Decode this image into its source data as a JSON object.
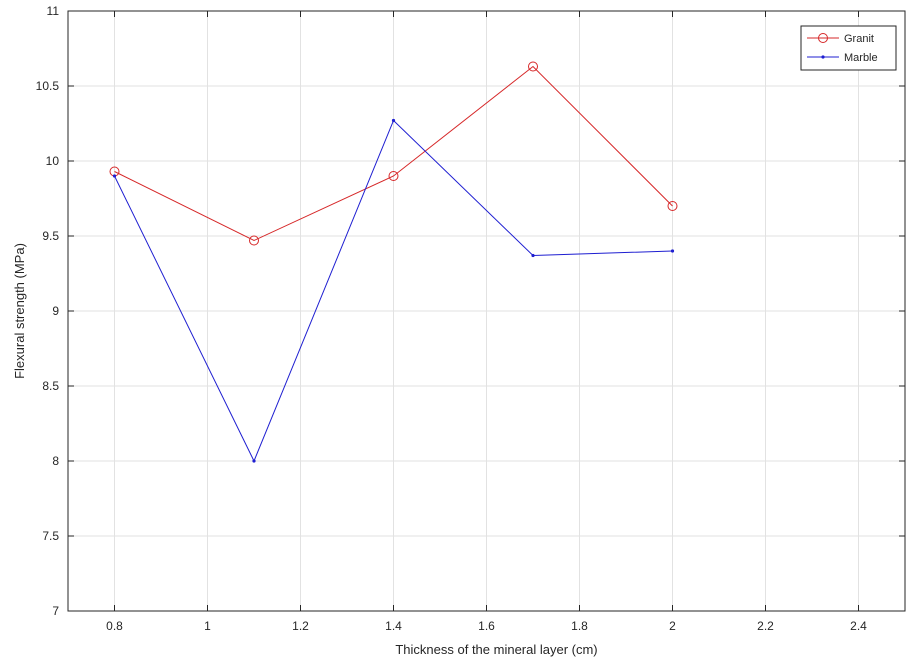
{
  "chart_data": {
    "type": "line",
    "title": "",
    "xlabel": "Thickness of the mineral layer (cm)",
    "ylabel": "Flexural strength (MPa)",
    "xlim": [
      0.7,
      2.5
    ],
    "ylim": [
      7,
      11
    ],
    "x_ticks": [
      0.8,
      1,
      1.2,
      1.4,
      1.6,
      1.8,
      2,
      2.2,
      2.4
    ],
    "x_tick_labels": [
      "0.8",
      "1",
      "1.2",
      "1.4",
      "1.6",
      "1.8",
      "2",
      "2.2",
      "2.4"
    ],
    "y_ticks": [
      7,
      7.5,
      8,
      8.5,
      9,
      9.5,
      10,
      10.5,
      11
    ],
    "y_tick_labels": [
      "7",
      "7.5",
      "8",
      "8.5",
      "9",
      "9.5",
      "10",
      "10.5",
      "11"
    ],
    "grid": true,
    "legend_position": "top-right",
    "series": [
      {
        "name": "Granit",
        "color": "#d62728",
        "marker": "circle",
        "x": [
          0.8,
          1.1,
          1.4,
          1.7,
          2.0
        ],
        "values": [
          9.93,
          9.47,
          9.9,
          10.63,
          9.7
        ]
      },
      {
        "name": "Marble",
        "color": "#1f1fd1",
        "marker": "dot",
        "x": [
          0.8,
          1.1,
          1.4,
          1.7,
          2.0
        ],
        "values": [
          9.9,
          8.0,
          10.27,
          9.37,
          9.4
        ]
      }
    ]
  }
}
